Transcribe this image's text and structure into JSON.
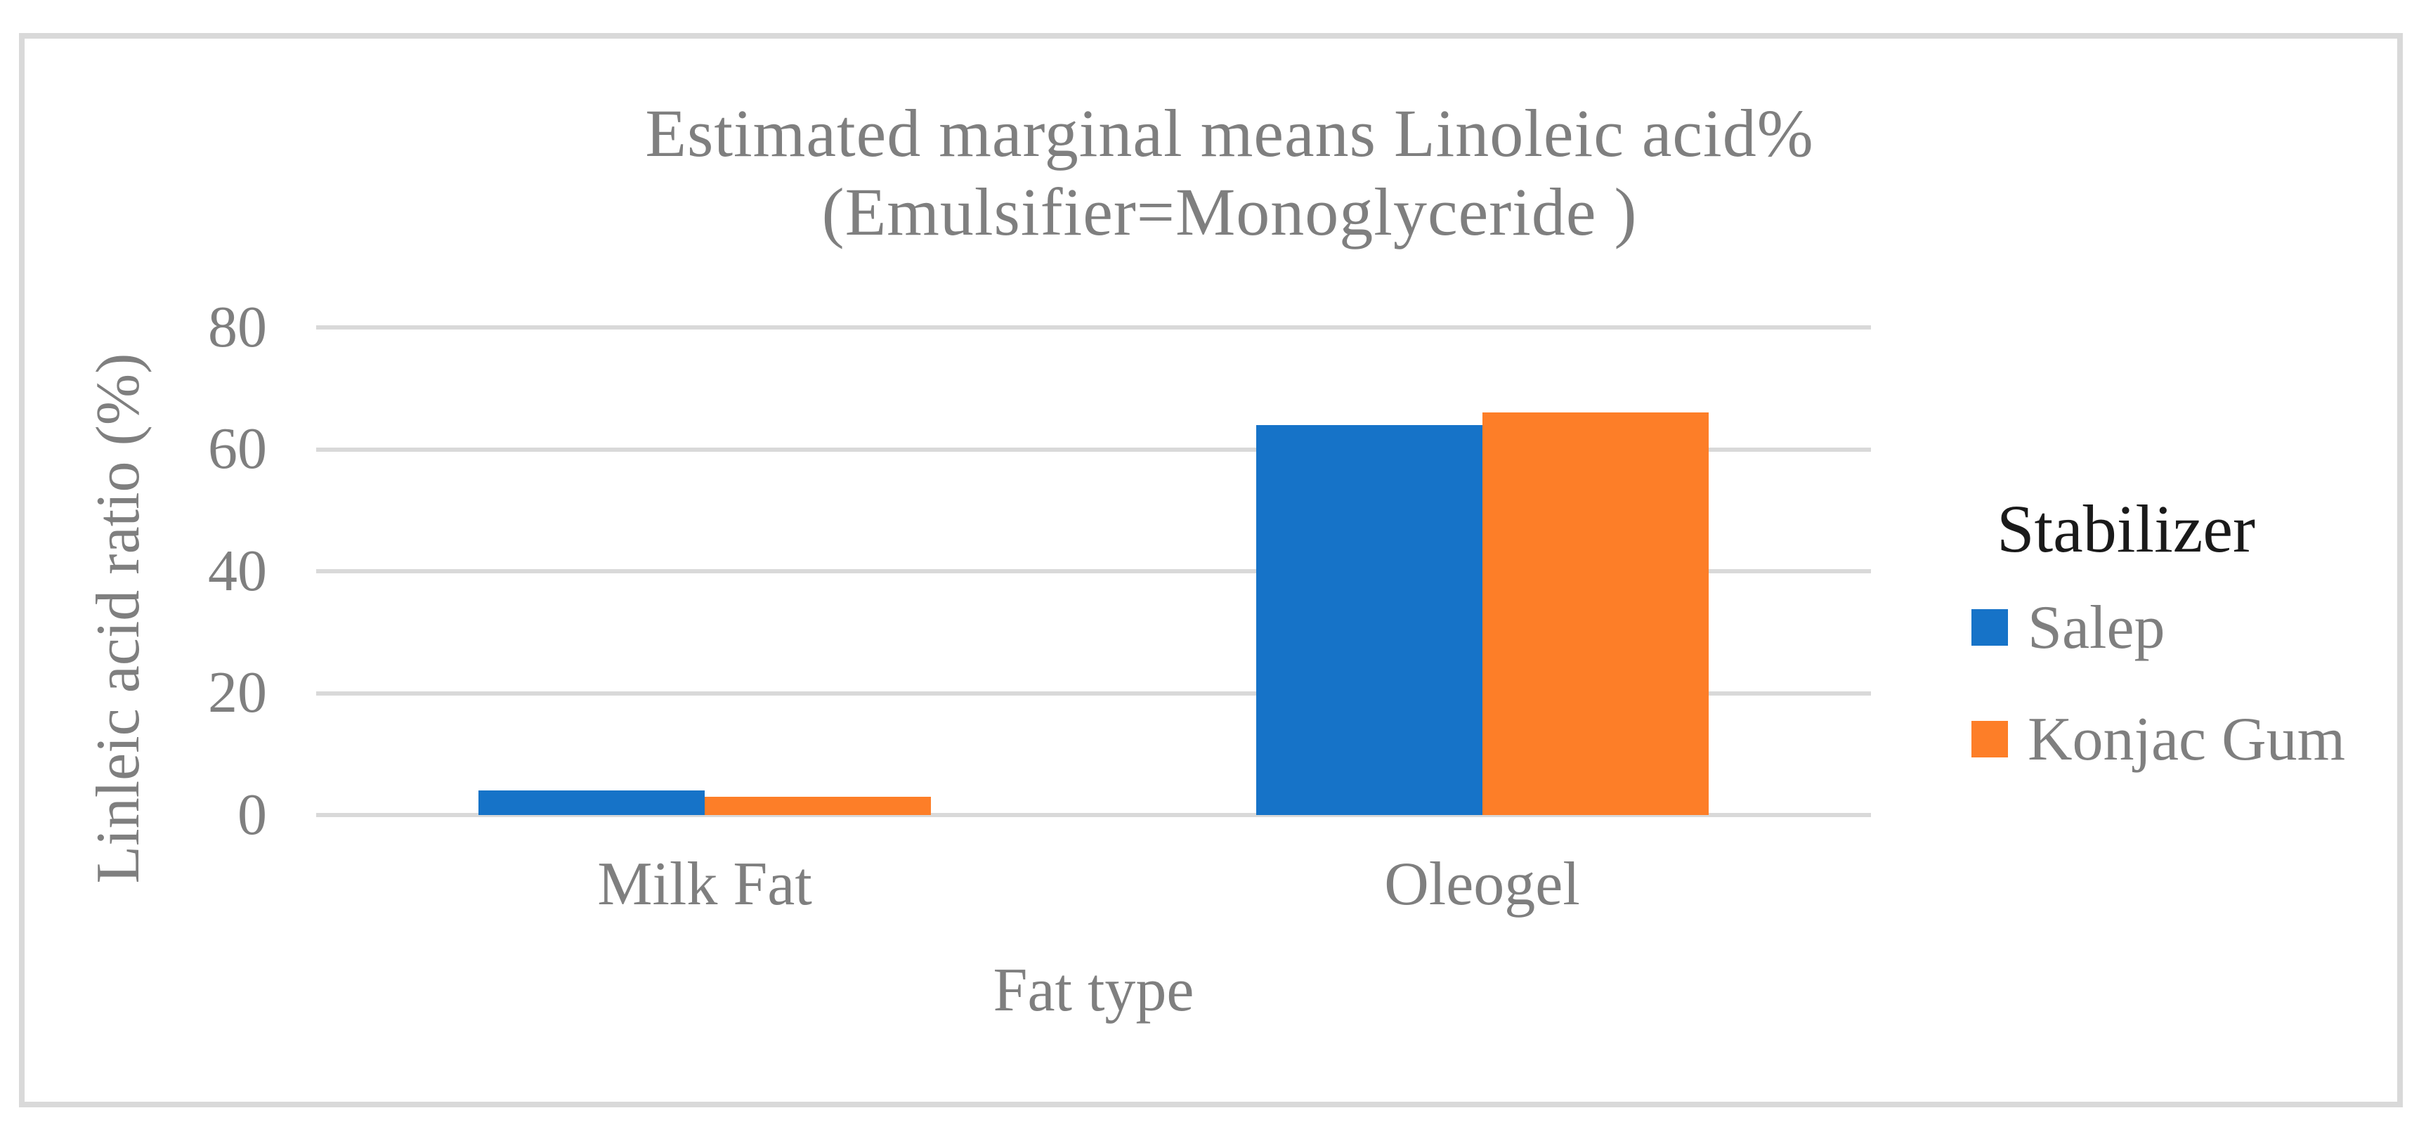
{
  "figure": {
    "title_line1": "Estimated marginal means Linoleic acid%",
    "title_line2": "(Emulsifier=Monoglyceride )",
    "y_axis_title": "Linleic acid ratio (%)",
    "x_axis_title": "Fat type",
    "legend_title": "Stabilizer"
  },
  "colors": {
    "salep_blue": "#1673C8",
    "konjac_orange": "#FD7E28",
    "gridline_gray": "#D9D9D9",
    "frame_border_gray": "#D9D9D9",
    "label_text_gray": "#7F7F7F",
    "legend_title_black": "#1A1A1A"
  },
  "chart_data": {
    "type": "bar",
    "title": "Estimated marginal means Linoleic acid% (Emulsifier=Monoglyceride )",
    "categories": [
      "Milk Fat",
      "Oleogel"
    ],
    "series": [
      {
        "name": "Salep",
        "color": "#1673C8",
        "values": [
          4,
          64
        ]
      },
      {
        "name": "Konjac Gum",
        "color": "#FD7E28",
        "values": [
          3,
          66
        ]
      }
    ],
    "xlabel": "Fat type",
    "ylabel": "Linleic acid ratio (%)",
    "ylim": [
      0,
      80
    ],
    "yticks": [
      0,
      20,
      40,
      60,
      80
    ],
    "grid": "horizontal",
    "legend_position": "right",
    "legend_title": "Stabilizer"
  }
}
